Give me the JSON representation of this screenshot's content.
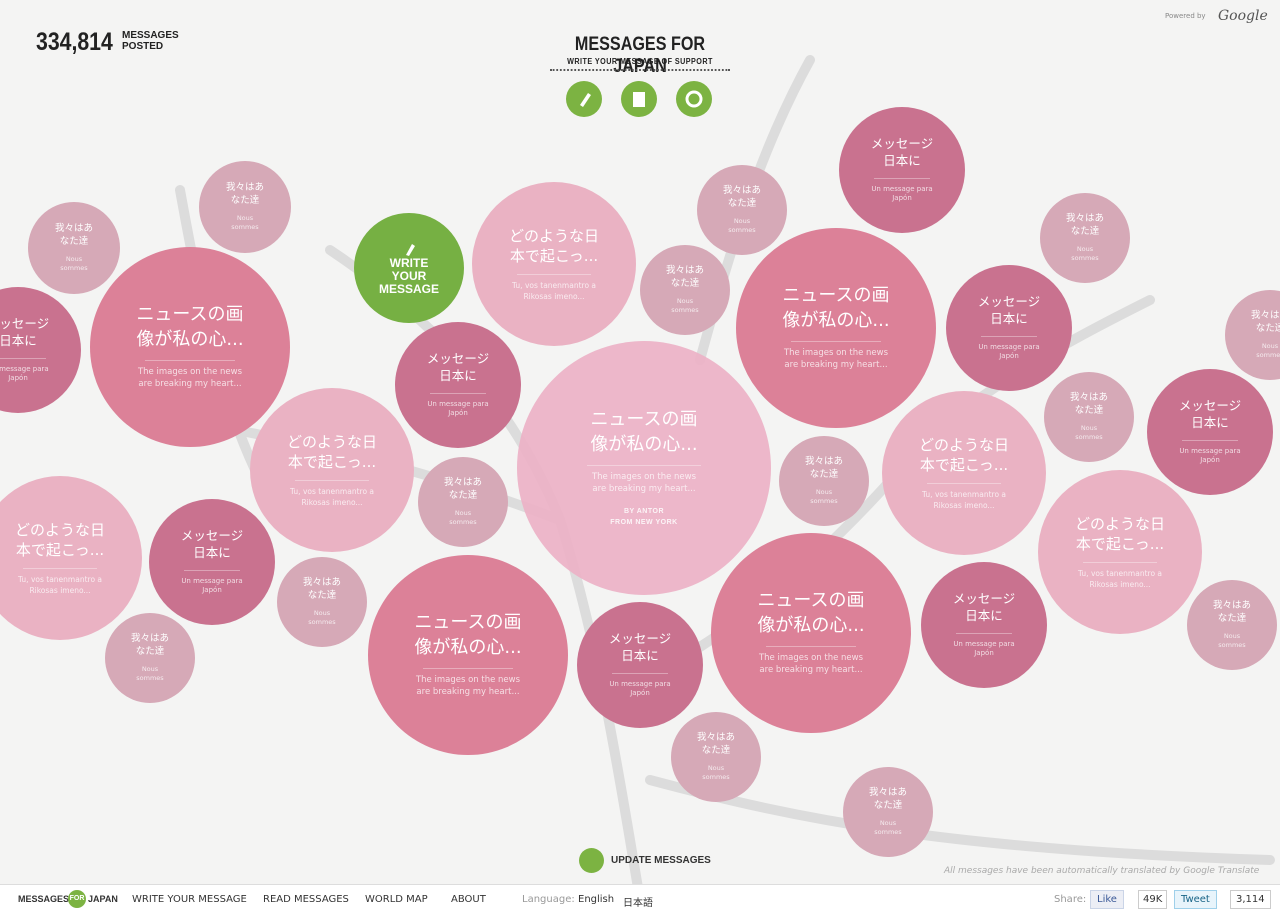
{
  "counter": {
    "number": "334,814",
    "label_lines": [
      "MESSAGES",
      "POSTED"
    ]
  },
  "header": {
    "title": "MESSAGES FOR JAPAN",
    "subtitle": "WRITE YOUR MESSAGE OF SUPPORT"
  },
  "powered": {
    "prefix": "Powered by",
    "brand": "Google"
  },
  "write_bubble": {
    "lines": [
      "WRITE",
      "YOUR",
      "MESSAGE"
    ]
  },
  "messages": [
    {
      "title_lines": [
        "ニュースの画",
        "像が私の心..."
      ],
      "text_lines": [
        "The images on the news",
        "are breaking my heart..."
      ]
    },
    {
      "title_lines": [
        "どのような日",
        "本で起こっ..."
      ],
      "text_lines": [
        "Tu, vos tanenmantro a",
        "Rikosas imeno..."
      ]
    },
    {
      "title_lines": [
        "メッセージ",
        "日本に"
      ],
      "text_lines": [
        "Un message para",
        "Japón"
      ]
    },
    {
      "title_lines": [
        "我々はあ",
        "なた達"
      ],
      "text_lines": [
        "Nous",
        "sommes"
      ]
    }
  ],
  "featured": {
    "author": "BY ANTOR",
    "origin": "FROM NEW YORK"
  },
  "update": "UPDATE MESSAGES",
  "note": "All messages have been automatically translated by Google Translate",
  "footer": {
    "logo": [
      "MESSAGES",
      "FOR",
      "JAPAN"
    ],
    "nav": [
      "WRITE YOUR MESSAGE",
      "READ MESSAGES",
      "WORLD MAP",
      "ABOUT"
    ],
    "language_label": "Language:",
    "languages": [
      "English",
      "日本語"
    ],
    "share_label": "Share:",
    "like": "Like",
    "like_count": "49K",
    "tweet": "Tweet",
    "tweet_count": "3,114"
  }
}
